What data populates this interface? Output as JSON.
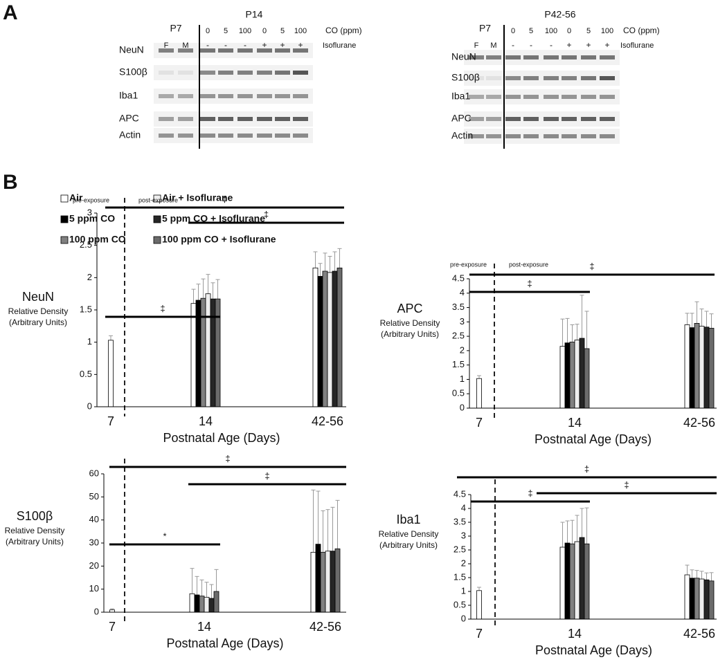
{
  "panel_a": {
    "label": "A",
    "blots": [
      {
        "time": "P7",
        "group": "P14",
        "co_label": "CO (ppm)",
        "iso_label": "Isoflurane",
        "lanes": [
          "F",
          "M",
          "0",
          "5",
          "100",
          "0",
          "5",
          "100"
        ],
        "iso": [
          "-",
          "-",
          "-",
          "+",
          "+",
          "+"
        ],
        "rows": [
          "NeuN",
          "S100β",
          "Iba1",
          "APC",
          "Actin"
        ]
      },
      {
        "time": "P7",
        "group": "P42-56",
        "co_label": "CO (ppm)",
        "iso_label": "Isoflurane",
        "lanes": [
          "F",
          "M",
          "0",
          "5",
          "100",
          "0",
          "5",
          "100"
        ],
        "iso": [
          "-",
          "-",
          "-",
          "+",
          "+",
          "+"
        ],
        "rows": [
          "NeuN",
          "S100β",
          "Iba1",
          "APC",
          "Actin"
        ]
      }
    ]
  },
  "panel_b": {
    "label": "B"
  },
  "chart_data": [
    {
      "type": "bar",
      "title": "NeuN",
      "ylabel": "Relative Density",
      "ylabel_units": "(Arbitrary Units)",
      "xlabel": "Postnatal Age (Days)",
      "annotations": [
        "pre-exposure",
        "post-exposure"
      ],
      "categories": [
        "7",
        "14",
        "42-56"
      ],
      "series": [
        {
          "name": "Air",
          "color": "#ffffff",
          "values": [
            1.03,
            1.6,
            2.15
          ],
          "errors": [
            0.07,
            0.22,
            0.25
          ]
        },
        {
          "name": "5 ppm CO",
          "color": "#000000",
          "values": [
            null,
            1.65,
            2.02
          ],
          "errors": [
            null,
            0.25,
            0.2
          ]
        },
        {
          "name": "100 ppm CO",
          "color": "#808080",
          "values": [
            null,
            1.68,
            2.1
          ],
          "errors": [
            null,
            0.3,
            0.28
          ]
        },
        {
          "name": "Air + Isoflurane",
          "color": "#eeeeee",
          "values": [
            null,
            1.75,
            2.08
          ],
          "errors": [
            null,
            0.3,
            0.25
          ]
        },
        {
          "name": "5 ppm CO + Isoflurane",
          "color": "#262626",
          "values": [
            null,
            1.67,
            2.1
          ],
          "errors": [
            null,
            0.25,
            0.3
          ]
        },
        {
          "name": "100 ppm CO + Isoflurane",
          "color": "#6b6b6b",
          "values": [
            null,
            1.67,
            2.15
          ],
          "errors": [
            null,
            0.3,
            0.3
          ]
        }
      ],
      "ylim": [
        0,
        3
      ],
      "yticks": [
        0,
        0.5,
        1,
        1.5,
        2,
        2.5,
        3
      ],
      "brackets": [
        {
          "label": "‡"
        },
        {
          "label": "‡"
        },
        {
          "label": "‡"
        }
      ]
    },
    {
      "type": "bar",
      "title": "APC",
      "ylabel": "Relative Density",
      "ylabel_units": "(Arbitrary Units)",
      "xlabel": "Postnatal Age (Days)",
      "annotations": [
        "pre-exposure",
        "post-exposure"
      ],
      "categories": [
        "7",
        "14",
        "42-56"
      ],
      "series": [
        {
          "name": "Air",
          "color": "#ffffff",
          "values": [
            1.03,
            2.15,
            2.9
          ],
          "errors": [
            0.1,
            0.95,
            0.4
          ]
        },
        {
          "name": "5 ppm CO",
          "color": "#000000",
          "values": [
            null,
            2.27,
            2.8
          ],
          "errors": [
            null,
            0.85,
            0.5
          ]
        },
        {
          "name": "100 ppm CO",
          "color": "#808080",
          "values": [
            null,
            2.3,
            2.95
          ],
          "errors": [
            null,
            0.6,
            0.75
          ]
        },
        {
          "name": "Air + Isoflurane",
          "color": "#eeeeee",
          "values": [
            null,
            2.37,
            2.85
          ],
          "errors": [
            null,
            0.55,
            0.6
          ]
        },
        {
          "name": "5 ppm CO + Isoflurane",
          "color": "#262626",
          "values": [
            null,
            2.43,
            2.82
          ],
          "errors": [
            null,
            1.5,
            0.55
          ]
        },
        {
          "name": "100 ppm CO + Isoflurane",
          "color": "#6b6b6b",
          "values": [
            null,
            2.07,
            2.78
          ],
          "errors": [
            null,
            1.3,
            0.5
          ]
        }
      ],
      "ylim": [
        0,
        4.5
      ],
      "yticks": [
        0,
        0.5,
        1,
        1.5,
        2,
        2.5,
        3,
        3.5,
        4,
        4.5
      ],
      "brackets": [
        {
          "label": "‡"
        },
        {
          "label": "‡"
        }
      ]
    },
    {
      "type": "bar",
      "title": "S100β",
      "ylabel": "Relative Density",
      "ylabel_units": "(Arbitrary Units)",
      "xlabel": "Postnatal Age (Days)",
      "categories": [
        "7",
        "14",
        "42-56"
      ],
      "series": [
        {
          "name": "Air",
          "color": "#ffffff",
          "values": [
            1,
            8,
            26
          ],
          "errors": [
            0.5,
            11,
            27
          ]
        },
        {
          "name": "5 ppm CO",
          "color": "#000000",
          "values": [
            null,
            7.5,
            29.5
          ],
          "errors": [
            null,
            8,
            23
          ]
        },
        {
          "name": "100 ppm CO",
          "color": "#808080",
          "values": [
            null,
            7,
            26
          ],
          "errors": [
            null,
            7,
            18
          ]
        },
        {
          "name": "Air + Isoflurane",
          "color": "#eeeeee",
          "values": [
            null,
            6.5,
            26.5
          ],
          "errors": [
            null,
            6.5,
            18
          ]
        },
        {
          "name": "5 ppm CO + Isoflurane",
          "color": "#262626",
          "values": [
            null,
            6,
            26.5
          ],
          "errors": [
            null,
            6,
            19
          ]
        },
        {
          "name": "100 ppm CO + Isoflurane",
          "color": "#6b6b6b",
          "values": [
            null,
            9,
            27.5
          ],
          "errors": [
            null,
            9.5,
            21
          ]
        }
      ],
      "ylim": [
        0,
        60
      ],
      "yticks": [
        0,
        10,
        20,
        30,
        40,
        50,
        60
      ],
      "brackets": [
        {
          "label": "‡"
        },
        {
          "label": "‡"
        },
        {
          "label": "*"
        }
      ]
    },
    {
      "type": "bar",
      "title": "Iba1",
      "ylabel": "Relative Density",
      "ylabel_units": "(Arbitrary Units)",
      "xlabel": "Postnatal Age (Days)",
      "categories": [
        "7",
        "14",
        "42-56"
      ],
      "series": [
        {
          "name": "Air",
          "color": "#ffffff",
          "values": [
            1.03,
            2.6,
            1.6
          ],
          "errors": [
            0.12,
            0.9,
            0.35
          ]
        },
        {
          "name": "5 ppm CO",
          "color": "#000000",
          "values": [
            null,
            2.75,
            1.48
          ],
          "errors": [
            null,
            0.8,
            0.3
          ]
        },
        {
          "name": "100 ppm CO",
          "color": "#808080",
          "values": [
            null,
            2.72,
            1.48
          ],
          "errors": [
            null,
            0.85,
            0.28
          ]
        },
        {
          "name": "Air + Isoflurane",
          "color": "#eeeeee",
          "values": [
            null,
            2.8,
            1.45
          ],
          "errors": [
            null,
            0.95,
            0.28
          ]
        },
        {
          "name": "5 ppm CO + Isoflurane",
          "color": "#262626",
          "values": [
            null,
            2.95,
            1.42
          ],
          "errors": [
            null,
            1.05,
            0.25
          ]
        },
        {
          "name": "100 ppm CO + Isoflurane",
          "color": "#6b6b6b",
          "values": [
            null,
            2.72,
            1.38
          ],
          "errors": [
            null,
            1.3,
            0.3
          ]
        }
      ],
      "ylim": [
        0,
        4.5
      ],
      "yticks": [
        0,
        0.5,
        1,
        1.5,
        2,
        2.5,
        3,
        3.5,
        4,
        4.5
      ],
      "brackets": [
        {
          "label": "‡"
        },
        {
          "label": "‡"
        },
        {
          "label": "‡"
        }
      ]
    }
  ]
}
